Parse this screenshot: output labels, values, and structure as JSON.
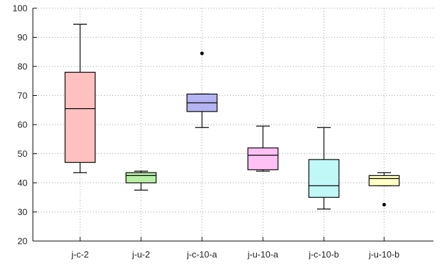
{
  "chart_data": {
    "type": "boxplot",
    "title": "",
    "xlabel": "",
    "ylabel": "",
    "ylim": [
      20,
      100
    ],
    "y_ticks": [
      20,
      30,
      40,
      50,
      60,
      70,
      80,
      90,
      100
    ],
    "grid": true,
    "categories": [
      "j-c-2",
      "j-u-2",
      "j-c-10-a",
      "j-u-10-a",
      "j-c-10-b",
      "j-u-10-b"
    ],
    "boxes": [
      {
        "label": "j-c-2",
        "min": 43.5,
        "q1": 47.0,
        "median": 65.5,
        "q3": 78.0,
        "max": 94.5,
        "outliers": [],
        "color": "#ffc0c0"
      },
      {
        "label": "j-u-2",
        "min": 37.5,
        "q1": 40.0,
        "median": 42.5,
        "q3": 43.5,
        "max": 44.0,
        "outliers": [],
        "color": "#b9f0a8"
      },
      {
        "label": "j-c-10-a",
        "min": 59.0,
        "q1": 64.5,
        "median": 67.5,
        "q3": 70.5,
        "max": 70.5,
        "outliers": [
          84.5
        ],
        "color": "#b4b4f2"
      },
      {
        "label": "j-u-10-a",
        "min": 44.0,
        "q1": 44.5,
        "median": 49.5,
        "q3": 52.0,
        "max": 59.5,
        "outliers": [],
        "color": "#ffc0f4"
      },
      {
        "label": "j-c-10-b",
        "min": 31.0,
        "q1": 35.0,
        "median": 39.0,
        "q3": 48.0,
        "max": 59.0,
        "outliers": [],
        "color": "#c0f8f8"
      },
      {
        "label": "j-u-10-b",
        "min": 39.0,
        "q1": 39.0,
        "median": 41.5,
        "q3": 42.5,
        "max": 43.5,
        "outliers": [
          32.5
        ],
        "color": "#ffffc4"
      }
    ]
  }
}
